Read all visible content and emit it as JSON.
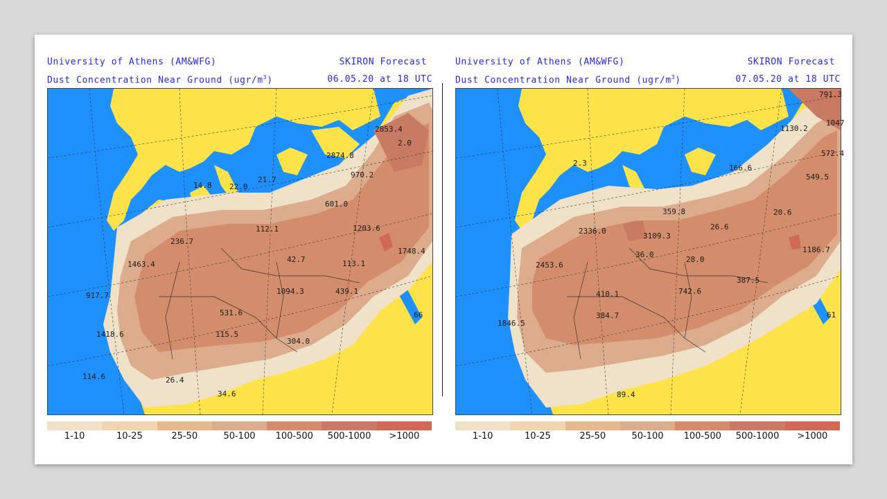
{
  "panels": [
    {
      "institution": "University of Athens (AM&WFG)",
      "product": "SKIRON Forecast",
      "variable": "Dust Concentration Near Ground (ugr/m",
      "unit_sup": "3",
      "unit_close": ")",
      "valid": "06.05.20 at 18 UTC",
      "values": [
        {
          "t": "2853.4"
        },
        {
          "t": "2.0"
        },
        {
          "t": "2874.8"
        },
        {
          "t": "970.2"
        },
        {
          "t": "14.8"
        },
        {
          "t": "22.0"
        },
        {
          "t": "21.7"
        },
        {
          "t": "601.0"
        },
        {
          "t": "112.1"
        },
        {
          "t": "1203.6"
        },
        {
          "t": "236.7"
        },
        {
          "t": "1748.4"
        },
        {
          "t": "1463.4"
        },
        {
          "t": "42.7"
        },
        {
          "t": "113.1"
        },
        {
          "t": "917.7"
        },
        {
          "t": "1094.3"
        },
        {
          "t": "439.1"
        },
        {
          "t": "531.6"
        },
        {
          "t": "66"
        },
        {
          "t": "1418.6"
        },
        {
          "t": "115.5"
        },
        {
          "t": "304.0"
        },
        {
          "t": "114.6"
        },
        {
          "t": "26.4"
        },
        {
          "t": "34.6"
        }
      ]
    },
    {
      "institution": "University of Athens (AM&WFG)",
      "product": "SKIRON Forecast",
      "variable": "Dust Concentration Near Ground (ugr/m",
      "unit_sup": "3",
      "unit_close": ")",
      "valid": "07.05.20 at 18 UTC",
      "values": [
        {
          "t": "791.3"
        },
        {
          "t": "1130.2"
        },
        {
          "t": "1047"
        },
        {
          "t": "572.4"
        },
        {
          "t": "2.3"
        },
        {
          "t": "166.6"
        },
        {
          "t": "549.5"
        },
        {
          "t": "359.8"
        },
        {
          "t": "26.6"
        },
        {
          "t": "20.6"
        },
        {
          "t": "2336.0"
        },
        {
          "t": "3109.3"
        },
        {
          "t": "36.0"
        },
        {
          "t": "28.0"
        },
        {
          "t": "1186.7"
        },
        {
          "t": "2453.6"
        },
        {
          "t": "387.5"
        },
        {
          "t": "410.1"
        },
        {
          "t": "742.6"
        },
        {
          "t": "384.7"
        },
        {
          "t": "61"
        },
        {
          "t": "1846.5"
        },
        {
          "t": "89.4"
        }
      ]
    }
  ],
  "legend": {
    "labels": [
      "1-10",
      "10-25",
      "25-50",
      "50-100",
      "100-500",
      "500-1000",
      ">1000"
    ],
    "colors": [
      "#efe2c9",
      "#f1d6ad",
      "#e9b98e",
      "#dcac8c",
      "#d48d6b",
      "#c97a63",
      "#cf6a52"
    ]
  },
  "colors": {
    "sea": "#1e90ff",
    "land_clean": "#ffe34a",
    "header_text": "#2a2ad6"
  }
}
